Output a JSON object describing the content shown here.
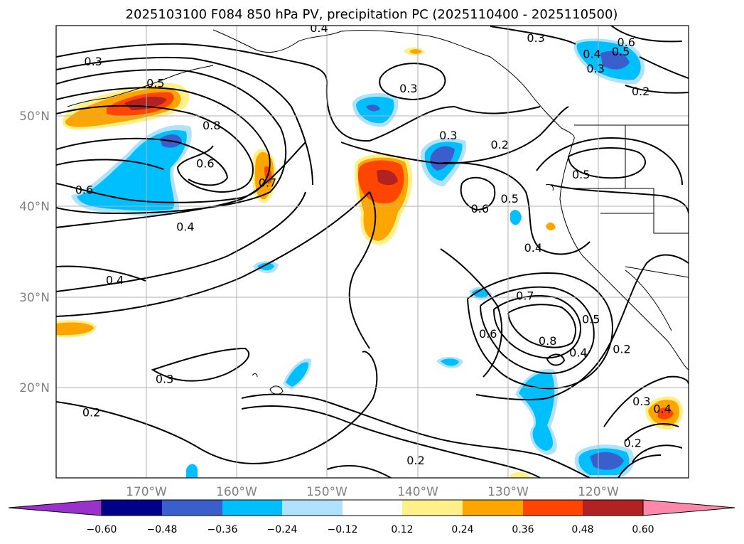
{
  "chart_data": {
    "type": "map-contour",
    "title": "2025103100 F084 850 hPa PV, precipitation PC (2025110400 - 2025110500)",
    "projection": "PlateCarree",
    "lon_range": [
      -180,
      -110
    ],
    "lat_range": [
      10,
      60
    ],
    "lat_ticks": [
      {
        "value": 50,
        "label": "50°N"
      },
      {
        "value": 40,
        "label": "40°N"
      },
      {
        "value": 30,
        "label": "30°N"
      },
      {
        "value": 20,
        "label": "20°N"
      }
    ],
    "lon_ticks": [
      {
        "value": -170,
        "label": "170°W"
      },
      {
        "value": -160,
        "label": "160°W"
      },
      {
        "value": -150,
        "label": "150°W"
      },
      {
        "value": -140,
        "label": "140°W"
      },
      {
        "value": -130,
        "label": "130°W"
      },
      {
        "value": -120,
        "label": "120°W"
      }
    ],
    "grid": true,
    "contour_variable": "850 hPa PV",
    "contour_labels": [
      {
        "text": "0.3",
        "lon": -175.9,
        "lat": 56.0
      },
      {
        "text": "0.5",
        "lon": -169.0,
        "lat": 53.6
      },
      {
        "text": "0.8",
        "lon": -162.8,
        "lat": 48.9
      },
      {
        "text": "0.6",
        "lon": -163.5,
        "lat": 44.7
      },
      {
        "text": "0.6",
        "lon": -176.9,
        "lat": 41.8
      },
      {
        "text": "0.7",
        "lon": -156.6,
        "lat": 42.6
      },
      {
        "text": "0.4",
        "lon": -165.7,
        "lat": 37.7
      },
      {
        "text": "0.4",
        "lon": -173.5,
        "lat": 31.8
      },
      {
        "text": "0.3",
        "lon": -141.0,
        "lat": 53.0
      },
      {
        "text": "0.3",
        "lon": -136.6,
        "lat": 47.8
      },
      {
        "text": "0.2",
        "lon": -130.9,
        "lat": 46.8
      },
      {
        "text": "0.5",
        "lon": -121.9,
        "lat": 43.5
      },
      {
        "text": "0.6",
        "lon": -133.1,
        "lat": 39.7
      },
      {
        "text": "0.5",
        "lon": -129.8,
        "lat": 40.8
      },
      {
        "text": "0.4",
        "lon": -127.2,
        "lat": 35.4
      },
      {
        "text": "0.3",
        "lon": -126.9,
        "lat": 58.6
      },
      {
        "text": "0.6",
        "lon": -116.9,
        "lat": 58.1
      },
      {
        "text": "0.5",
        "lon": -117.5,
        "lat": 57.1
      },
      {
        "text": "0.4",
        "lon": -120.7,
        "lat": 56.8
      },
      {
        "text": "0.3",
        "lon": -120.3,
        "lat": 55.2
      },
      {
        "text": "0.2",
        "lon": -115.3,
        "lat": 52.7
      },
      {
        "text": "0.4",
        "lon": -150.9,
        "lat": 59.7
      },
      {
        "text": "0.7",
        "lon": -128.1,
        "lat": 30.1
      },
      {
        "text": "0.6",
        "lon": -132.2,
        "lat": 25.9
      },
      {
        "text": "0.8",
        "lon": -125.6,
        "lat": 25.1
      },
      {
        "text": "0.5",
        "lon": -120.8,
        "lat": 27.5
      },
      {
        "text": "0.4",
        "lon": -122.2,
        "lat": 23.8
      },
      {
        "text": "0.2",
        "lon": -117.4,
        "lat": 24.2
      },
      {
        "text": "0.3",
        "lon": -115.2,
        "lat": 18.4
      },
      {
        "text": "0.4",
        "lon": -112.9,
        "lat": 17.6
      },
      {
        "text": "0.2",
        "lon": -116.2,
        "lat": 13.8
      },
      {
        "text": "0.3",
        "lon": -168.0,
        "lat": 20.9
      },
      {
        "text": "0.2",
        "lon": -176.1,
        "lat": 17.2
      },
      {
        "text": "0.2",
        "lon": -140.2,
        "lat": 11.9
      }
    ],
    "colorbar": {
      "variable": "precipitation PC",
      "ticks": [
        "−0.60",
        "−0.48",
        "−0.36",
        "−0.24",
        "−0.12",
        "0.12",
        "0.24",
        "0.36",
        "0.48",
        "0.60"
      ],
      "colors": [
        "#9932cc",
        "#00008b",
        "#3a5fcd",
        "#00bfff",
        "#b0e2ff",
        "#ffffff",
        "#fff08a",
        "#ffa500",
        "#ff4500",
        "#b22222",
        "#ff88aa"
      ],
      "extend": "both"
    },
    "shading_colors": {
      "pos_weak": "#fff08a",
      "pos_mid": "#ffa500",
      "pos_strong": "#ff4500",
      "pos_max": "#b22222",
      "neg_weak": "#b0e2ff",
      "neg_mid": "#00bfff",
      "neg_strong": "#3a5fcd"
    }
  }
}
